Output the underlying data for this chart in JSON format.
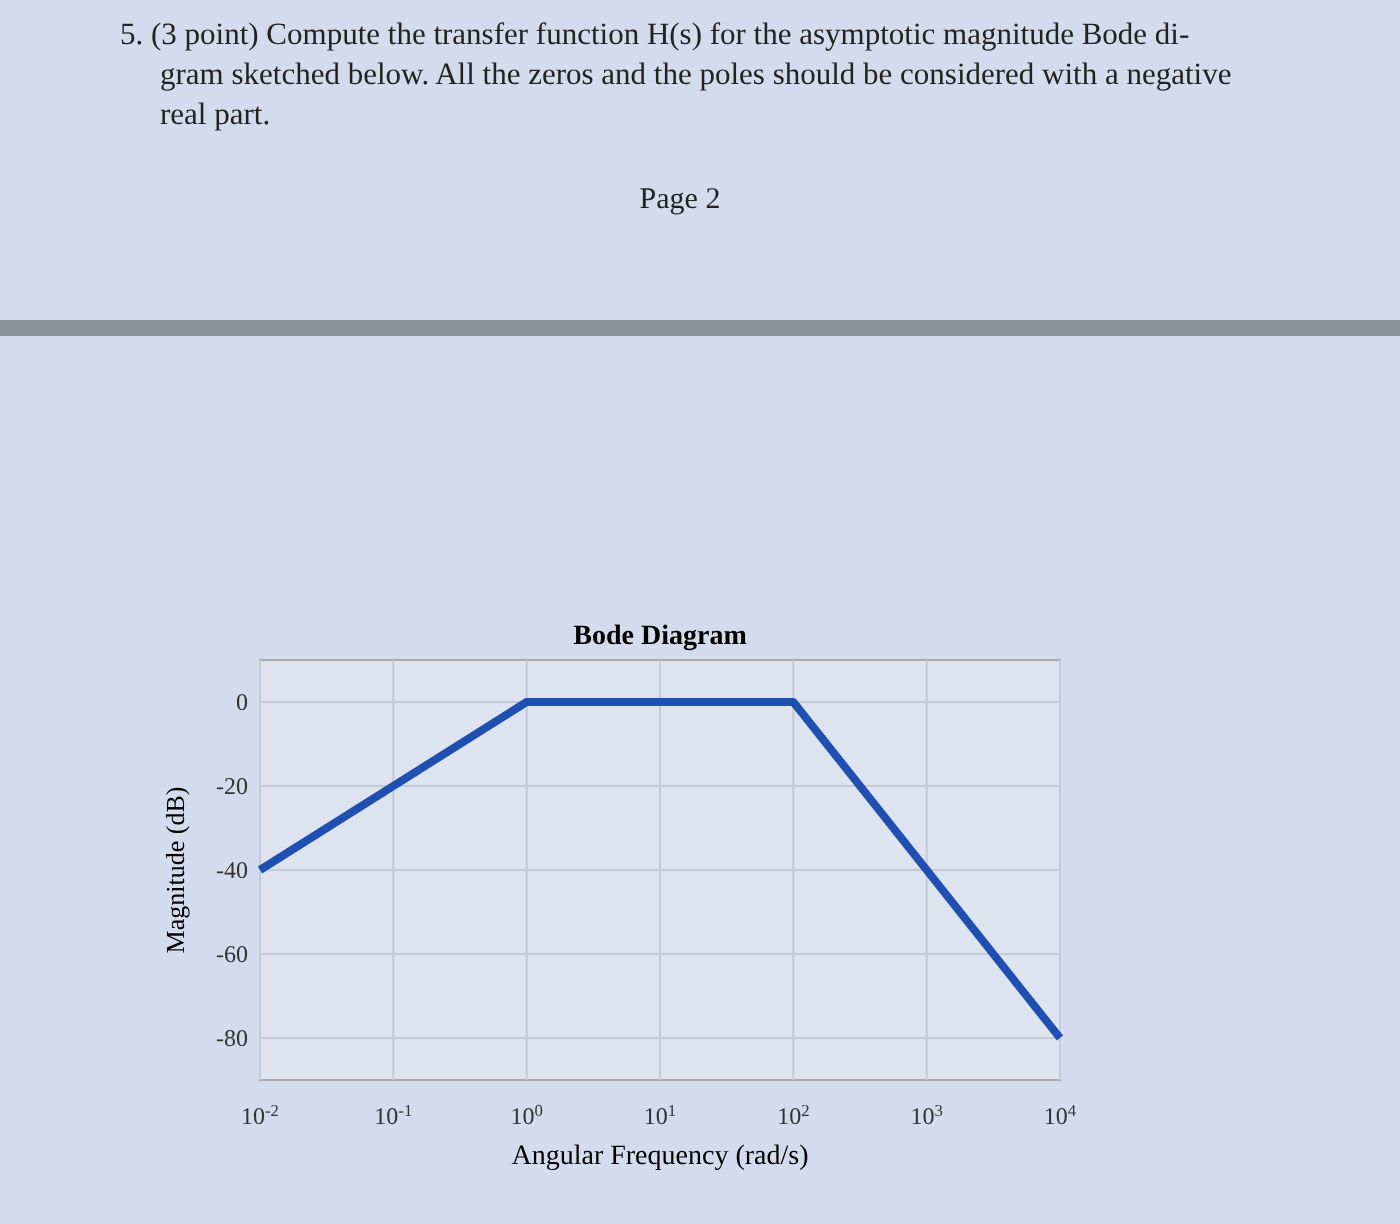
{
  "chart_data": {
    "type": "line",
    "title": "Bode Diagram",
    "xlabel": "Angular Frequency (rad/s)",
    "ylabel": "Magnitude (dB)",
    "annotations": [
      "5. (3 point) Compute the transfer function H(s) for the asymptotic magnitude Bode di-",
      "gram sketched below. All the zeros and the poles should be considered with a negative",
      "real part.",
      "Page 2"
    ],
    "x": [
      0.01,
      1,
      100,
      10000
    ],
    "series": [
      {
        "color": "#1f4fb0",
        "values": [
          -40,
          0,
          0,
          -80
        ]
      }
    ],
    "log": "x",
    "xlim": [
      0.01,
      10000
    ],
    "xticks": [
      {
        "value": 0.01,
        "label": "10$^{-2}$"
      },
      {
        "value": 0.1,
        "label": "10$^{-1}$"
      },
      {
        "value": 1,
        "label": "10$^{0}$"
      },
      {
        "value": 10,
        "label": "10$^{1}$"
      },
      {
        "value": 100,
        "label": "10$^{2}$"
      },
      {
        "value": 1000,
        "label": "10$^{3}$"
      },
      {
        "value": 10000,
        "label": "10$^{4}$"
      }
    ],
    "ylim": [
      -90,
      10
    ],
    "yticks": [
      0,
      -20,
      -40,
      -60,
      -80
    ],
    "grid": true,
    "marker": "none",
    "line_style": "solid"
  }
}
